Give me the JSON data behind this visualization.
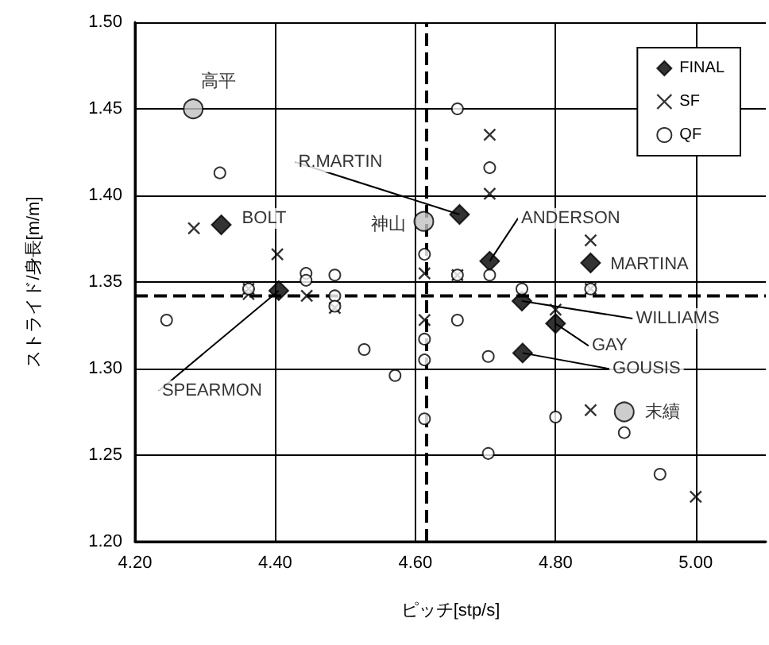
{
  "chart_data": {
    "type": "scatter",
    "xlabel": "ピッチ[stp/s]",
    "ylabel": "ストライド/身長[m/m]",
    "xlim": [
      4.2,
      5.1
    ],
    "xticks": [
      {
        "value": 4.2,
        "label": "4.20"
      },
      {
        "value": 4.4,
        "label": "4.40"
      },
      {
        "value": 4.6,
        "label": "4.60"
      },
      {
        "value": 4.8,
        "label": "4.80"
      },
      {
        "value": 5.0,
        "label": "5.00"
      }
    ],
    "ylim": [
      1.2,
      1.5
    ],
    "yticks": [
      {
        "value": 1.2,
        "label": "1.20"
      },
      {
        "value": 1.25,
        "label": "1.25"
      },
      {
        "value": 1.3,
        "label": "1.30"
      },
      {
        "value": 1.35,
        "label": "1.35"
      },
      {
        "value": 1.4,
        "label": "1.40"
      },
      {
        "value": 1.45,
        "label": "1.45"
      },
      {
        "value": 1.5,
        "label": "1.50"
      }
    ],
    "grid": true,
    "legend": "top right",
    "series": [
      {
        "name": "FINAL",
        "color": "#000000",
        "marker": "diamond",
        "x": [
          4.323,
          4.405,
          4.663,
          4.706,
          4.85,
          4.752,
          4.8,
          4.753
        ],
        "values": [
          1.383,
          1.345,
          1.389,
          1.362,
          1.361,
          1.339,
          1.326,
          1.309
        ]
      },
      {
        "name": "SF",
        "color": "#000000",
        "marker": "cross",
        "x": [
          4.284,
          4.403,
          4.362,
          4.362,
          4.445,
          4.485,
          4.613,
          4.613,
          4.706,
          4.706,
          4.66,
          4.85,
          4.85,
          4.8,
          4.85,
          5.0
        ],
        "values": [
          1.381,
          1.366,
          1.346,
          1.343,
          1.342,
          1.335,
          1.355,
          1.328,
          1.435,
          1.401,
          1.354,
          1.374,
          1.346,
          1.334,
          1.276,
          1.226
        ]
      },
      {
        "name": "QF",
        "color": "#000000",
        "marker": "circle",
        "x": [
          4.321,
          4.362,
          4.444,
          4.444,
          4.485,
          4.485,
          4.485,
          4.245,
          4.527,
          4.571,
          4.613,
          4.613,
          4.613,
          4.613,
          4.66,
          4.706,
          4.706,
          4.66,
          4.85,
          4.752,
          4.66,
          4.704,
          4.8,
          4.898,
          4.704,
          4.949
        ],
        "values": [
          1.413,
          1.346,
          1.355,
          1.351,
          1.354,
          1.342,
          1.336,
          1.328,
          1.311,
          1.296,
          1.366,
          1.317,
          1.305,
          1.271,
          1.45,
          1.416,
          1.354,
          1.354,
          1.346,
          1.346,
          1.328,
          1.307,
          1.272,
          1.263,
          1.251,
          1.239
        ]
      },
      {
        "color": "#c0c0c0",
        "marker": "circle",
        "x": [
          4.283,
          4.612,
          4.898
        ],
        "values": [
          1.45,
          1.385,
          1.275
        ]
      }
    ],
    "ref_lines": [
      {
        "axis": "x",
        "value": 4.616,
        "line_style": "dashed",
        "color": "#000000"
      },
      {
        "axis": "y",
        "value": 1.342,
        "line_style": "dashed",
        "color": "#000000"
      }
    ],
    "annotations": [
      {
        "text": "高平",
        "x": 4.283,
        "y": 1.45
      },
      {
        "text": "BOLT",
        "x": 4.323,
        "y": 1.383
      },
      {
        "text": "神山",
        "x": 4.612,
        "y": 1.385
      },
      {
        "text": "末續",
        "x": 4.898,
        "y": 1.275
      },
      {
        "text": "R.MARTIN",
        "x": 4.663,
        "y": 1.389
      },
      {
        "text": "ANDERSON",
        "x": 4.706,
        "y": 1.362
      },
      {
        "text": "MARTINA",
        "x": 4.85,
        "y": 1.361
      },
      {
        "text": "WILLIAMS",
        "x": 4.752,
        "y": 1.339
      },
      {
        "text": "GAY",
        "x": 4.8,
        "y": 1.326
      },
      {
        "text": "GOUSIS",
        "x": 4.753,
        "y": 1.309
      },
      {
        "text": "SPEARMON",
        "x": 4.405,
        "y": 1.345
      }
    ]
  }
}
